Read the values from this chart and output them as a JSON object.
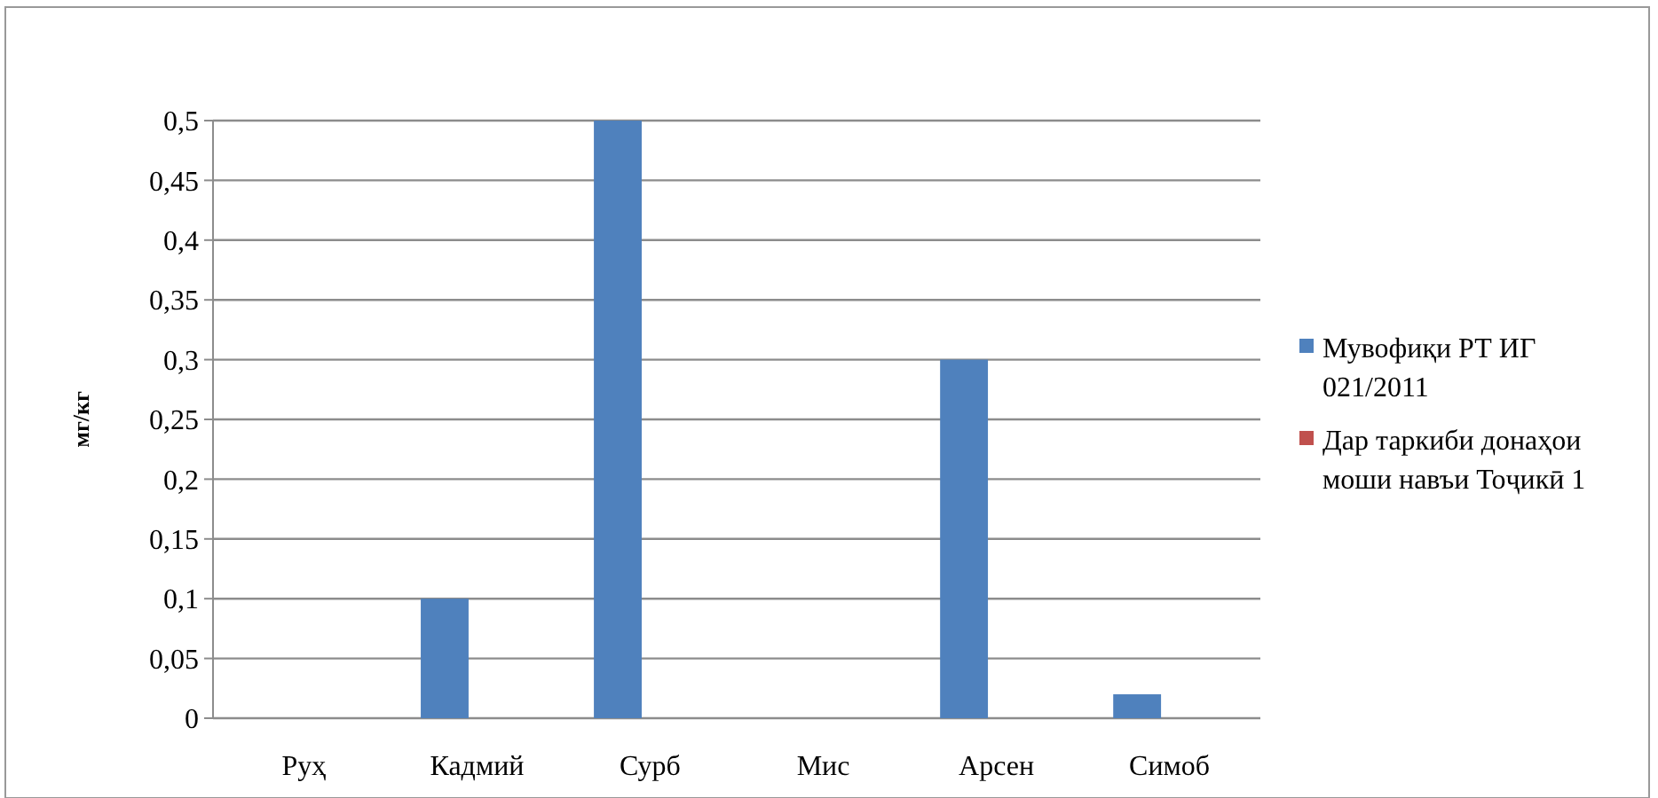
{
  "chart_data": {
    "type": "bar",
    "ylabel": "мг/кг",
    "categories": [
      "Руҳ",
      "Кадмий",
      "Сурб",
      "Мис",
      "Арсен",
      "Симоб"
    ],
    "series": [
      {
        "name": "Мувофиқи РТ ИГ 021/2011",
        "color": "#4f81bd",
        "values": [
          0,
          0.1,
          0.5,
          0,
          0.3,
          0.02
        ]
      },
      {
        "name": "Дар таркиби донаҳои моши навъи Тоҷикӣ 1",
        "color": "#c0504d",
        "values": [
          0,
          0,
          0,
          0,
          0,
          0
        ]
      }
    ],
    "ylim": [
      0,
      0.5
    ],
    "yticks": [
      {
        "value": 0,
        "label": "0"
      },
      {
        "value": 0.05,
        "label": "0,05"
      },
      {
        "value": 0.1,
        "label": "0,1"
      },
      {
        "value": 0.15,
        "label": "0,15"
      },
      {
        "value": 0.2,
        "label": "0,2"
      },
      {
        "value": 0.25,
        "label": "0,25"
      },
      {
        "value": 0.3,
        "label": "0,3"
      },
      {
        "value": 0.35,
        "label": "0,35"
      },
      {
        "value": 0.4,
        "label": "0,4"
      },
      {
        "value": 0.45,
        "label": "0,45"
      },
      {
        "value": 0.5,
        "label": "0,5"
      }
    ],
    "grid": "y",
    "legend": "right"
  }
}
